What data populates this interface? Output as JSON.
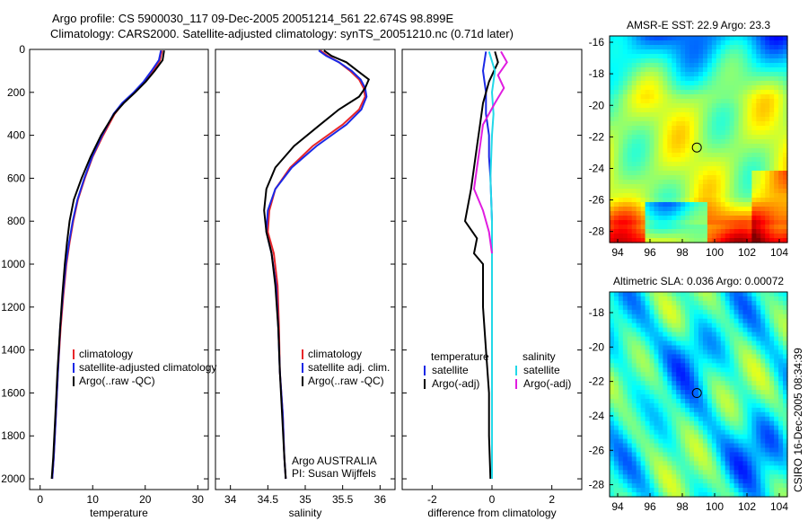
{
  "title_line1": "Argo profile: CS 5900030_117 09-Dec-2005 20051214_561 22.674S 98.899E",
  "title_line2": "Climatology: CARS2000. Satellite-adjusted climatology: synTS_20051210.nc (0.71d later)",
  "side_label": "CSIRO 16-Dec-2005 08:34:39",
  "colors": {
    "red": "#e8262a",
    "blue": "#1a28e6",
    "black": "#000000",
    "cyan": "#22d8e8",
    "magenta": "#e01ce0"
  },
  "chart_data": [
    {
      "type": "line",
      "xlabel": "temperature",
      "ylabel": "",
      "xlim": [
        -2,
        32
      ],
      "ylim": [
        2050,
        0
      ],
      "xticks": [
        0,
        10,
        20,
        30
      ],
      "yticks": [
        0,
        200,
        400,
        600,
        800,
        1000,
        1200,
        1400,
        1600,
        1800,
        2000
      ],
      "legend": {
        "position": "lower-center",
        "entries": [
          "climatology",
          "satellite-adjusted climatology",
          "Argo(..raw -QC)"
        ]
      },
      "series": [
        {
          "name": "climatology",
          "color": "red",
          "x": [
            23.2,
            22.8,
            21.5,
            20.0,
            18.0,
            15.8,
            14.2,
            12.0,
            10.0,
            8.5,
            7.2,
            6.3,
            5.6,
            5.0,
            4.4,
            3.9,
            3.4,
            3.0,
            2.6,
            2.3
          ],
          "y": [
            5,
            50,
            100,
            150,
            200,
            250,
            300,
            400,
            500,
            600,
            700,
            800,
            900,
            1000,
            1150,
            1300,
            1500,
            1700,
            1900,
            2000
          ]
        },
        {
          "name": "satellite-adjusted climatology",
          "color": "blue",
          "x": [
            23.0,
            22.6,
            21.2,
            19.7,
            17.8,
            15.6,
            14.0,
            11.8,
            9.9,
            8.4,
            7.1,
            6.2,
            5.5,
            4.9,
            4.3,
            3.8,
            3.4,
            3.0,
            2.6,
            2.3
          ],
          "y": [
            5,
            50,
            100,
            150,
            200,
            250,
            300,
            400,
            500,
            600,
            700,
            800,
            900,
            1000,
            1150,
            1300,
            1500,
            1700,
            1900,
            2000
          ]
        },
        {
          "name": "Argo(..raw -QC)",
          "color": "black",
          "x": [
            23.6,
            23.3,
            21.8,
            20.1,
            18.1,
            15.9,
            14.1,
            11.6,
            9.6,
            7.9,
            6.4,
            5.6,
            5.1,
            4.7,
            4.2,
            3.8,
            3.3,
            2.9,
            2.5,
            2.2
          ],
          "y": [
            5,
            50,
            100,
            150,
            200,
            250,
            300,
            400,
            500,
            600,
            700,
            800,
            900,
            1000,
            1150,
            1300,
            1500,
            1700,
            1900,
            2000
          ]
        }
      ]
    },
    {
      "type": "line",
      "xlabel": "salinity",
      "xlim": [
        33.8,
        36.2
      ],
      "ylim": [
        2050,
        0
      ],
      "xticks": [
        34,
        34.5,
        35,
        35.5,
        36
      ],
      "legend": {
        "position": "lower-center",
        "entries": [
          "climatology",
          "satellite adj. clim.",
          "Argo(..raw -QC)"
        ]
      },
      "annotation": {
        "line1": "Argo AUSTRALIA",
        "line2": "PI: Susan Wijffels"
      },
      "series": [
        {
          "name": "climatology",
          "color": "red",
          "x": [
            35.2,
            35.3,
            35.45,
            35.6,
            35.72,
            35.78,
            35.8,
            35.72,
            35.5,
            35.1,
            34.8,
            34.6,
            34.52,
            34.5,
            34.58,
            34.63,
            34.65,
            34.66,
            34.7,
            34.72,
            34.74
          ],
          "y": [
            5,
            30,
            60,
            100,
            140,
            180,
            220,
            280,
            350,
            450,
            550,
            650,
            750,
            850,
            950,
            1100,
            1300,
            1500,
            1700,
            1900,
            2000
          ]
        },
        {
          "name": "satellite adj. clim.",
          "color": "blue",
          "x": [
            35.18,
            35.28,
            35.45,
            35.62,
            35.74,
            35.8,
            35.82,
            35.75,
            35.55,
            35.15,
            34.82,
            34.6,
            34.5,
            34.48,
            34.55,
            34.61,
            34.64,
            34.66,
            34.7,
            34.72,
            34.74
          ],
          "y": [
            5,
            30,
            60,
            100,
            140,
            180,
            220,
            280,
            350,
            450,
            550,
            650,
            750,
            850,
            950,
            1100,
            1300,
            1500,
            1700,
            1900,
            2000
          ]
        },
        {
          "name": "Argo(..raw -QC)",
          "color": "black",
          "x": [
            35.25,
            35.35,
            35.55,
            35.7,
            35.85,
            35.8,
            35.72,
            35.45,
            35.2,
            34.85,
            34.6,
            34.48,
            34.45,
            34.48,
            34.55,
            34.6,
            34.64,
            34.66,
            34.69,
            34.72,
            34.74
          ],
          "y": [
            5,
            30,
            60,
            100,
            140,
            180,
            220,
            280,
            350,
            450,
            550,
            650,
            750,
            850,
            950,
            1100,
            1300,
            1500,
            1700,
            1900,
            2000
          ]
        }
      ]
    },
    {
      "type": "line",
      "xlabel": "difference from climatology",
      "xlim": [
        -3,
        3
      ],
      "ylim": [
        2050,
        0
      ],
      "xticks": [
        -2,
        0,
        2
      ],
      "legend": {
        "position": "lower-center",
        "entries": [
          "temperature",
          "satellite",
          "Argo(-adj)",
          "salinity",
          "satellite",
          "Argo(-adj)"
        ]
      },
      "series": [
        {
          "name": "satellite",
          "color": "blue",
          "group": "temperature",
          "x": [
            -0.2,
            -0.3,
            -0.2,
            -0.2,
            -0.1,
            -0.1,
            -0.05,
            0,
            0,
            0,
            0,
            0,
            0,
            0
          ],
          "y": [
            10,
            100,
            200,
            300,
            400,
            500,
            600,
            800,
            1000,
            1200,
            1400,
            1600,
            1800,
            2000
          ]
        },
        {
          "name": "Argo(-adj)",
          "color": "black",
          "group": "temperature",
          "x": [
            0.1,
            0.2,
            -0.1,
            -0.3,
            -0.4,
            -0.5,
            -0.6,
            -0.7,
            -0.9,
            -0.5,
            -0.6,
            -0.3,
            -0.3,
            -0.2,
            -0.1,
            -0.1,
            -0.05
          ],
          "y": [
            10,
            60,
            150,
            250,
            350,
            450,
            550,
            650,
            800,
            880,
            950,
            1000,
            1200,
            1400,
            1600,
            1800,
            2000
          ]
        },
        {
          "name": "satellite",
          "color": "cyan",
          "group": "salinity",
          "x": [
            -0.1,
            0.1,
            0,
            0.05,
            0,
            -0.05,
            0,
            0,
            0,
            0,
            0,
            0
          ],
          "y": [
            10,
            100,
            200,
            300,
            400,
            600,
            800,
            1000,
            1200,
            1500,
            1800,
            2000
          ]
        },
        {
          "name": "Argo(-adj)",
          "color": "magenta",
          "group": "salinity",
          "x": [
            0.3,
            0.5,
            0.2,
            0.4,
            0.1,
            -0.3,
            -0.4,
            -0.5,
            -0.6,
            -0.3,
            -0.1,
            0
          ],
          "y": [
            10,
            60,
            120,
            180,
            250,
            350,
            450,
            550,
            650,
            750,
            850,
            950
          ]
        }
      ]
    },
    {
      "type": "heatmap",
      "title": "AMSR-E SST: 22.9 Argo: 23.3",
      "xlim": [
        93.5,
        104.5
      ],
      "ylim": [
        -28.7,
        -15.6
      ],
      "xticks": [
        94,
        96,
        98,
        100,
        102,
        104
      ],
      "yticks": [
        -16,
        -18,
        -20,
        -22,
        -24,
        -26,
        -28
      ],
      "marker": {
        "lon": 98.899,
        "lat": -22.674
      }
    },
    {
      "type": "heatmap",
      "title": "Altimetric SLA: 0.036 Argo: 0.00072",
      "xlim": [
        93.5,
        104.5
      ],
      "ylim": [
        -28.7,
        -16.8
      ],
      "xticks": [
        94,
        96,
        98,
        100,
        102,
        104
      ],
      "yticks": [
        -18,
        -20,
        -22,
        -24,
        -26,
        -28
      ],
      "marker": {
        "lon": 98.899,
        "lat": -22.674
      }
    }
  ]
}
